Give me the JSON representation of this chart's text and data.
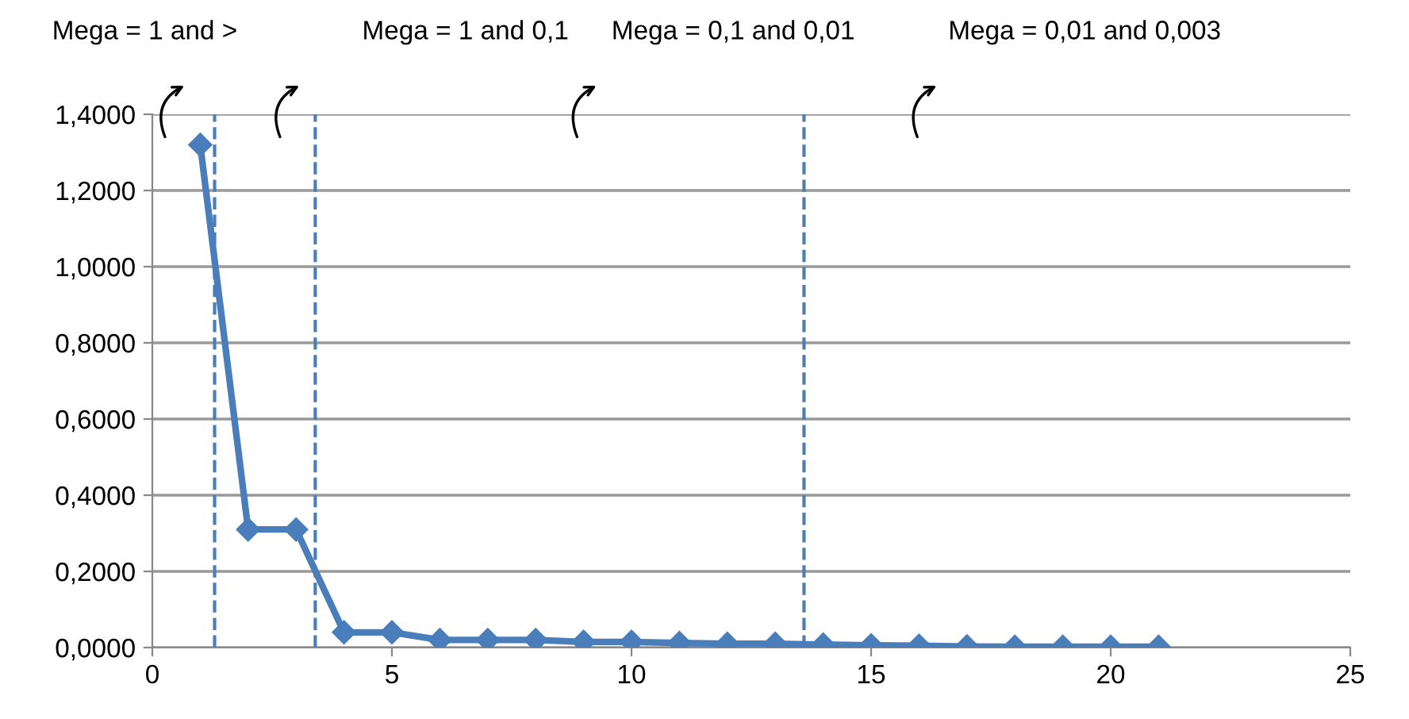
{
  "chart_data": {
    "type": "line",
    "x": [
      1,
      2,
      3,
      4,
      5,
      6,
      7,
      8,
      9,
      10,
      11,
      12,
      13,
      14,
      15,
      16,
      17,
      18,
      19,
      20,
      21
    ],
    "series": [
      {
        "color": "#4a7ebb",
        "values": [
          1.32,
          0.31,
          0.31,
          0.04,
          0.04,
          0.02,
          0.02,
          0.02,
          0.015,
          0.015,
          0.012,
          0.01,
          0.01,
          0.008,
          0.006,
          0.005,
          0.003,
          0.002,
          0.002,
          0.002,
          0.002
        ]
      }
    ],
    "xlim": [
      0,
      25
    ],
    "xticks": [
      0,
      5,
      10,
      15,
      20,
      25
    ],
    "ylim": [
      0,
      1.4
    ],
    "yticks": [
      {
        "value": 0,
        "label": "0,0000"
      },
      {
        "value": 0.2,
        "label": "0,2000"
      },
      {
        "value": 0.4,
        "label": "0,4000"
      },
      {
        "value": 0.6,
        "label": "0,6000"
      },
      {
        "value": 0.8,
        "label": "0,8000"
      },
      {
        "value": 1.0,
        "label": "1,0000"
      },
      {
        "value": 1.2,
        "label": "1,2000"
      },
      {
        "value": 1.4,
        "label": "1,4000"
      }
    ],
    "grid": "y",
    "marker": "diamond",
    "line_style": "solid",
    "ref_lines": [
      {
        "axis": "x",
        "value": 1.3,
        "color": "#4a7ebb",
        "line_style": "dashed"
      },
      {
        "axis": "x",
        "value": 3.4,
        "color": "#4a7ebb",
        "line_style": "dashed"
      },
      {
        "axis": "x",
        "value": 13.6,
        "color": "#4a7ebb",
        "line_style": "dashed"
      }
    ],
    "annotations": [
      "Mega = 1 and >",
      "Mega = 1 and 0,1",
      "Mega = 0,1 and 0,01",
      "Mega = 0,01 and 0,003"
    ]
  }
}
